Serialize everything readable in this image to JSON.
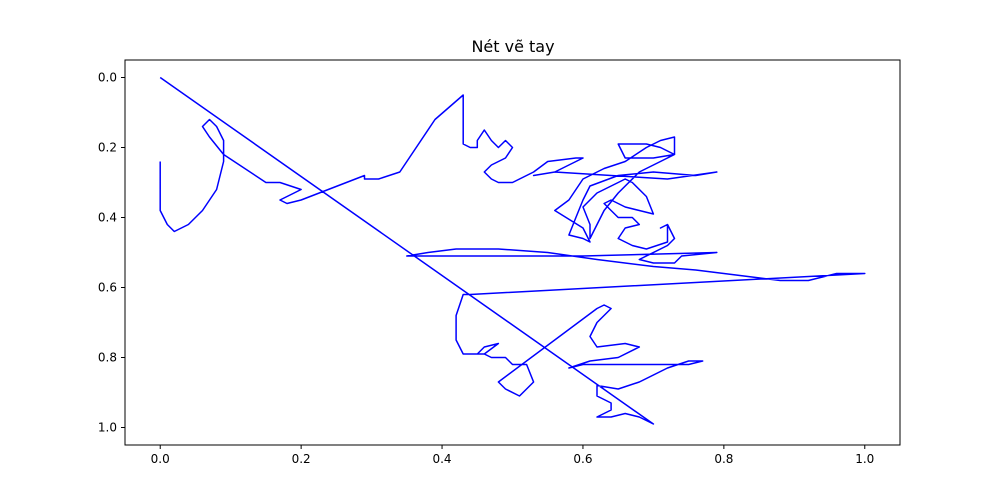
{
  "chart_data": {
    "type": "line",
    "title": "Nét vẽ tay",
    "xlabel": "",
    "ylabel": "",
    "xlim": [
      -0.05,
      1.05
    ],
    "ylim": [
      1.05,
      -0.05
    ],
    "y_inverted": true,
    "grid": false,
    "legend": "none",
    "x_ticks": [
      "0.0",
      "0.2",
      "0.4",
      "0.6",
      "0.8",
      "1.0"
    ],
    "y_ticks": [
      "0.0",
      "0.2",
      "0.4",
      "0.6",
      "0.8",
      "1.0"
    ],
    "series": [
      {
        "color": "#0000ff",
        "points": [
          [
            0.0,
            0.0
          ],
          [
            0.7,
            0.99
          ],
          [
            0.68,
            0.97
          ],
          [
            0.66,
            0.96
          ],
          [
            0.64,
            0.97
          ],
          [
            0.62,
            0.97
          ],
          [
            0.64,
            0.95
          ],
          [
            0.64,
            0.93
          ],
          [
            0.62,
            0.91
          ],
          [
            0.62,
            0.88
          ],
          [
            0.65,
            0.89
          ],
          [
            0.68,
            0.87
          ],
          [
            0.72,
            0.83
          ],
          [
            0.75,
            0.81
          ],
          [
            0.77,
            0.81
          ],
          [
            0.75,
            0.82
          ],
          [
            0.6,
            0.82
          ],
          [
            0.58,
            0.83
          ],
          [
            0.61,
            0.81
          ],
          [
            0.65,
            0.8
          ],
          [
            0.68,
            0.77
          ],
          [
            0.66,
            0.76
          ],
          [
            0.62,
            0.77
          ],
          [
            0.61,
            0.74
          ],
          [
            0.62,
            0.7
          ],
          [
            0.64,
            0.66
          ],
          [
            0.63,
            0.65
          ],
          [
            0.62,
            0.66
          ],
          [
            0.48,
            0.87
          ],
          [
            0.49,
            0.89
          ],
          [
            0.51,
            0.91
          ],
          [
            0.53,
            0.87
          ],
          [
            0.52,
            0.82
          ],
          [
            0.5,
            0.82
          ],
          [
            0.49,
            0.8
          ],
          [
            0.47,
            0.8
          ],
          [
            0.46,
            0.79
          ],
          [
            0.45,
            0.79
          ],
          [
            0.46,
            0.77
          ],
          [
            0.48,
            0.76
          ],
          [
            0.46,
            0.79
          ],
          [
            0.43,
            0.79
          ],
          [
            0.42,
            0.75
          ],
          [
            0.42,
            0.68
          ],
          [
            0.43,
            0.62
          ],
          [
            0.44,
            0.62
          ],
          [
            1.0,
            0.56
          ],
          [
            0.96,
            0.56
          ],
          [
            0.92,
            0.58
          ],
          [
            0.88,
            0.58
          ],
          [
            0.84,
            0.57
          ],
          [
            0.8,
            0.56
          ],
          [
            0.76,
            0.55
          ],
          [
            0.7,
            0.54
          ],
          [
            0.62,
            0.52
          ],
          [
            0.55,
            0.5
          ],
          [
            0.48,
            0.49
          ],
          [
            0.42,
            0.49
          ],
          [
            0.38,
            0.5
          ],
          [
            0.35,
            0.51
          ],
          [
            0.6,
            0.51
          ],
          [
            0.79,
            0.5
          ],
          [
            0.74,
            0.51
          ],
          [
            0.73,
            0.53
          ],
          [
            0.7,
            0.53
          ],
          [
            0.68,
            0.52
          ],
          [
            0.72,
            0.48
          ],
          [
            0.73,
            0.46
          ],
          [
            0.72,
            0.42
          ],
          [
            0.71,
            0.43
          ],
          [
            0.72,
            0.42
          ],
          [
            0.72,
            0.47
          ],
          [
            0.69,
            0.49
          ],
          [
            0.67,
            0.48
          ],
          [
            0.65,
            0.46
          ],
          [
            0.66,
            0.43
          ],
          [
            0.68,
            0.42
          ],
          [
            0.67,
            0.4
          ],
          [
            0.65,
            0.4
          ],
          [
            0.64,
            0.38
          ],
          [
            0.63,
            0.36
          ],
          [
            0.64,
            0.35
          ],
          [
            0.66,
            0.37
          ],
          [
            0.68,
            0.38
          ],
          [
            0.7,
            0.39
          ],
          [
            0.69,
            0.34
          ],
          [
            0.67,
            0.3
          ],
          [
            0.66,
            0.29
          ],
          [
            0.65,
            0.3
          ],
          [
            0.62,
            0.33
          ],
          [
            0.6,
            0.37
          ],
          [
            0.61,
            0.42
          ],
          [
            0.61,
            0.46
          ],
          [
            0.63,
            0.38
          ],
          [
            0.65,
            0.33
          ],
          [
            0.68,
            0.27
          ],
          [
            0.7,
            0.25
          ],
          [
            0.73,
            0.22
          ],
          [
            0.71,
            0.2
          ],
          [
            0.69,
            0.19
          ],
          [
            0.65,
            0.19
          ],
          [
            0.66,
            0.23
          ],
          [
            0.7,
            0.23
          ],
          [
            0.73,
            0.22
          ],
          [
            0.73,
            0.17
          ],
          [
            0.71,
            0.18
          ],
          [
            0.69,
            0.2
          ],
          [
            0.66,
            0.24
          ],
          [
            0.63,
            0.26
          ],
          [
            0.6,
            0.29
          ],
          [
            0.58,
            0.35
          ],
          [
            0.56,
            0.38
          ],
          [
            0.6,
            0.43
          ],
          [
            0.61,
            0.47
          ],
          [
            0.6,
            0.46
          ],
          [
            0.58,
            0.45
          ],
          [
            0.59,
            0.4
          ],
          [
            0.6,
            0.35
          ],
          [
            0.61,
            0.31
          ],
          [
            0.65,
            0.28
          ],
          [
            0.7,
            0.27
          ],
          [
            0.76,
            0.28
          ],
          [
            0.79,
            0.27
          ],
          [
            0.72,
            0.29
          ],
          [
            0.64,
            0.28
          ],
          [
            0.56,
            0.27
          ],
          [
            0.53,
            0.28
          ],
          [
            0.56,
            0.27
          ],
          [
            0.6,
            0.23
          ],
          [
            0.59,
            0.23
          ],
          [
            0.55,
            0.24
          ],
          [
            0.53,
            0.27
          ],
          [
            0.5,
            0.3
          ],
          [
            0.48,
            0.3
          ],
          [
            0.47,
            0.29
          ],
          [
            0.46,
            0.27
          ],
          [
            0.47,
            0.25
          ],
          [
            0.49,
            0.23
          ],
          [
            0.5,
            0.2
          ],
          [
            0.49,
            0.18
          ],
          [
            0.48,
            0.2
          ],
          [
            0.47,
            0.18
          ],
          [
            0.46,
            0.15
          ],
          [
            0.45,
            0.18
          ],
          [
            0.45,
            0.2
          ],
          [
            0.44,
            0.2
          ],
          [
            0.43,
            0.19
          ],
          [
            0.43,
            0.15
          ],
          [
            0.43,
            0.05
          ],
          [
            0.39,
            0.12
          ],
          [
            0.34,
            0.27
          ],
          [
            0.31,
            0.29
          ],
          [
            0.29,
            0.29
          ],
          [
            0.29,
            0.28
          ],
          [
            0.2,
            0.35
          ],
          [
            0.18,
            0.36
          ],
          [
            0.17,
            0.35
          ],
          [
            0.19,
            0.33
          ],
          [
            0.2,
            0.32
          ],
          [
            0.17,
            0.3
          ],
          [
            0.16,
            0.3
          ],
          [
            0.15,
            0.3
          ],
          [
            0.09,
            0.22
          ],
          [
            0.07,
            0.17
          ],
          [
            0.06,
            0.14
          ],
          [
            0.07,
            0.12
          ],
          [
            0.08,
            0.14
          ],
          [
            0.09,
            0.18
          ],
          [
            0.09,
            0.24
          ],
          [
            0.08,
            0.32
          ],
          [
            0.06,
            0.38
          ],
          [
            0.04,
            0.42
          ],
          [
            0.02,
            0.44
          ],
          [
            0.01,
            0.42
          ],
          [
            0.0,
            0.38
          ],
          [
            0.0,
            0.3
          ],
          [
            0.0,
            0.26
          ],
          [
            0.0,
            0.24
          ]
        ]
      }
    ]
  }
}
